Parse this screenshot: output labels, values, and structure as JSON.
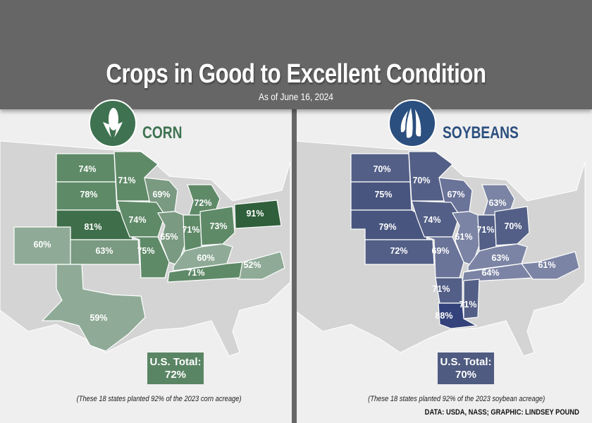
{
  "header": {
    "title": "Crops in Good to Excellent Condition",
    "subtitle": "As of June 16, 2024"
  },
  "corn": {
    "name": "CORN",
    "icon": "corn-icon",
    "color": "#3e7250",
    "total_label": "U.S. Total:",
    "total_value": "72%",
    "note": "(These 18 states planted 92% of the 2023 corn acreage)",
    "states": {
      "ND": "74%",
      "MN": "71%",
      "SD": "78%",
      "WI": "69%",
      "MI": "72%",
      "NE": "81%",
      "IA": "74%",
      "PA": "91%",
      "IL": "65%",
      "IN": "71%",
      "OH": "73%",
      "CO": "60%",
      "KS": "63%",
      "MO": "75%",
      "KY": "60%",
      "NC": "52%",
      "TN": "71%",
      "TX": "59%"
    }
  },
  "soybeans": {
    "name": "SOYBEANS",
    "icon": "soybean-pod-icon",
    "color": "#2b4f7e",
    "total_label": "U.S. Total:",
    "total_value": "70%",
    "note": "(These 18 states planted 92% of the 2023 soybean acreage)",
    "states": {
      "ND": "70%",
      "MN": "70%",
      "SD": "75%",
      "WI": "67%",
      "MI": "63%",
      "NE": "79%",
      "IA": "74%",
      "IL": "61%",
      "IN": "71%",
      "OH": "70%",
      "KS": "72%",
      "MO": "69%",
      "KY": "63%",
      "TN": "64%",
      "NC": "61%",
      "AR": "71%",
      "MS": "71%",
      "LA": "88%"
    }
  },
  "credit": "DATA: USDA, NASS; GRAPHIC: LINDSEY POUND"
}
